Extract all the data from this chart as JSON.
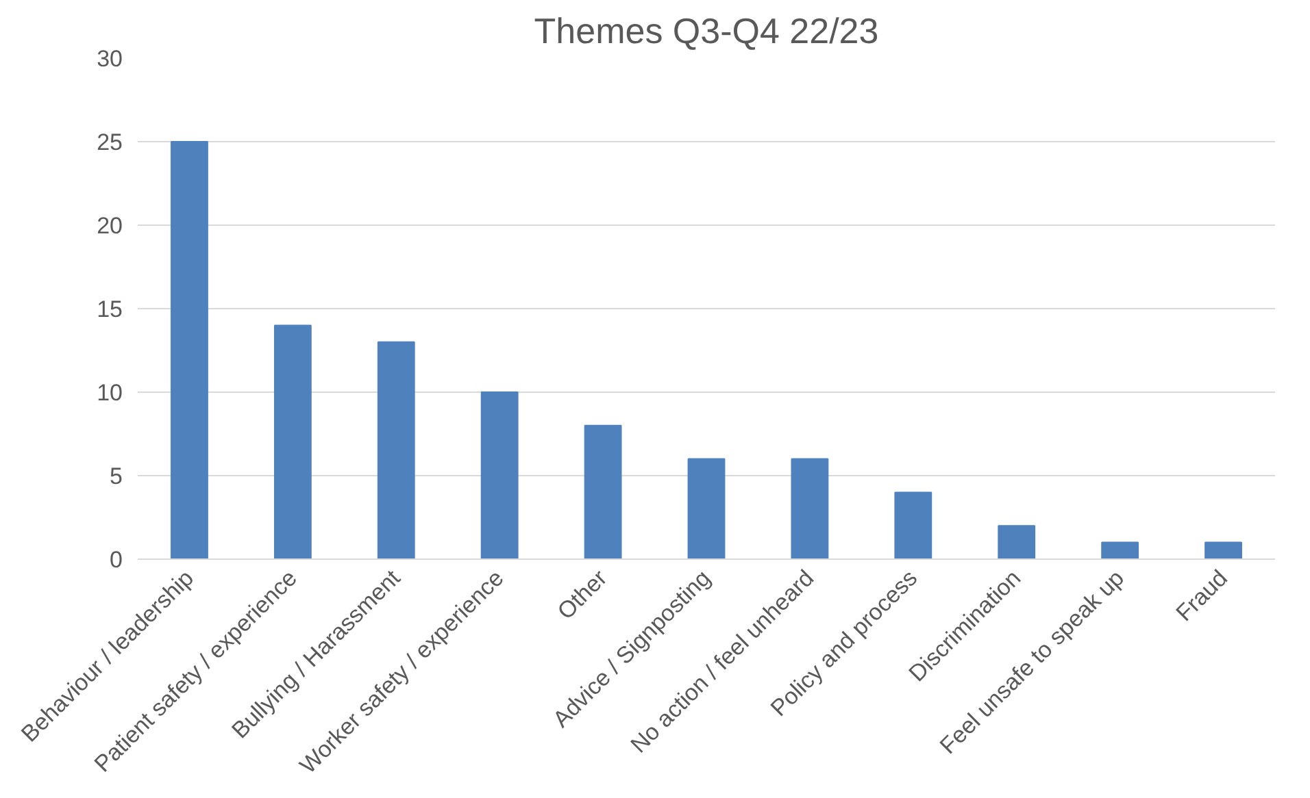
{
  "chart_data": {
    "type": "bar",
    "title": "Themes Q3-Q4 22/23",
    "categories": [
      "Behaviour / leadership",
      "Patient safety / experience",
      "Bullying / Harassment",
      "Worker safety / experience",
      "Other",
      "Advice / Signposting",
      "No action / feel unheard",
      "Policy and process",
      "Discrimination",
      "Feel unsafe to speak up",
      "Fraud"
    ],
    "values": [
      25,
      14,
      13,
      10,
      8,
      6,
      6,
      4,
      2,
      1,
      1
    ],
    "color": "#4f81bd",
    "ylim": [
      0,
      30
    ],
    "yticks": [
      0,
      5,
      10,
      15,
      20,
      25,
      30
    ],
    "grid": "y"
  }
}
